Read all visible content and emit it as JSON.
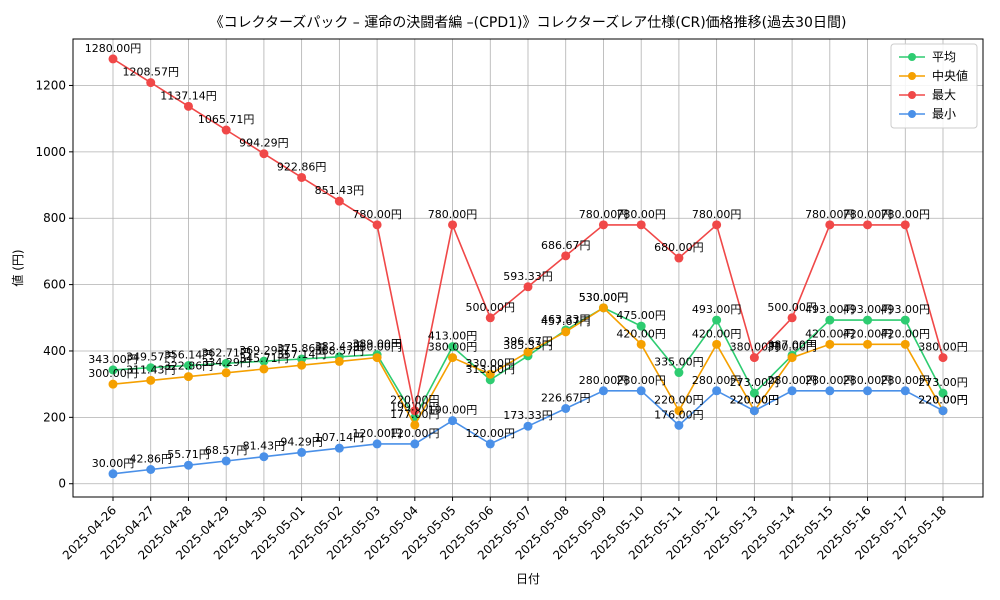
{
  "chart_data": {
    "type": "line",
    "title": "《コレクターズパック – 運命の決闘者編 –(CPD1)》コレクターズレア仕様(CR)価格推移(過去30日間)",
    "xlabel": "日付",
    "ylabel": "値 (円)",
    "ylim": [
      -40,
      1340
    ],
    "yticks": [
      0,
      200,
      400,
      600,
      800,
      1000,
      1200
    ],
    "grid": true,
    "legend_position": "top-right",
    "value_suffix": "円",
    "categories": [
      "2025-04-26",
      "2025-04-27",
      "2025-04-28",
      "2025-04-29",
      "2025-04-30",
      "2025-05-01",
      "2025-05-02",
      "2025-05-03",
      "2025-05-04",
      "2025-05-05",
      "2025-05-06",
      "2025-05-07",
      "2025-05-08",
      "2025-05-09",
      "2025-05-10",
      "2025-05-11",
      "2025-05-12",
      "2025-05-13",
      "2025-05-14",
      "2025-05-15",
      "2025-05-16",
      "2025-05-17",
      "2025-05-18"
    ],
    "series": [
      {
        "name": "平均",
        "color": "#2ecc71",
        "values": [
          343.0,
          349.57,
          356.14,
          362.71,
          369.29,
          375.86,
          382.43,
          389.0,
          199.0,
          413.0,
          313.0,
          385.33,
          463.33,
          530.0,
          475.0,
          335.0,
          493.0,
          273.0,
          387.0,
          493.0,
          493.0,
          493.0,
          273.0
        ]
      },
      {
        "name": "中央値",
        "color": "#f5a000",
        "values": [
          300.0,
          311.43,
          322.86,
          334.29,
          345.71,
          357.14,
          368.57,
          380.0,
          177.0,
          380.0,
          330.0,
          396.67,
          457.67,
          530.0,
          420.0,
          220.0,
          420.0,
          220.0,
          380.0,
          420.0,
          420.0,
          420.0,
          220.0
        ]
      },
      {
        "name": "最大",
        "color": "#f04848",
        "values": [
          1280.0,
          1208.57,
          1137.14,
          1065.71,
          994.29,
          922.86,
          851.43,
          780.0,
          220.0,
          780.0,
          500.0,
          593.33,
          686.67,
          780.0,
          780.0,
          680.0,
          780.0,
          380.0,
          500.0,
          780.0,
          780.0,
          780.0,
          380.0
        ]
      },
      {
        "name": "最小",
        "color": "#4a90e8",
        "values": [
          30.0,
          42.86,
          55.71,
          68.57,
          81.43,
          94.29,
          107.14,
          120.0,
          120.0,
          190.0,
          120.0,
          173.33,
          226.67,
          280.0,
          280.0,
          176.0,
          280.0,
          220.0,
          280.0,
          280.0,
          280.0,
          280.0,
          220.0
        ]
      }
    ]
  }
}
